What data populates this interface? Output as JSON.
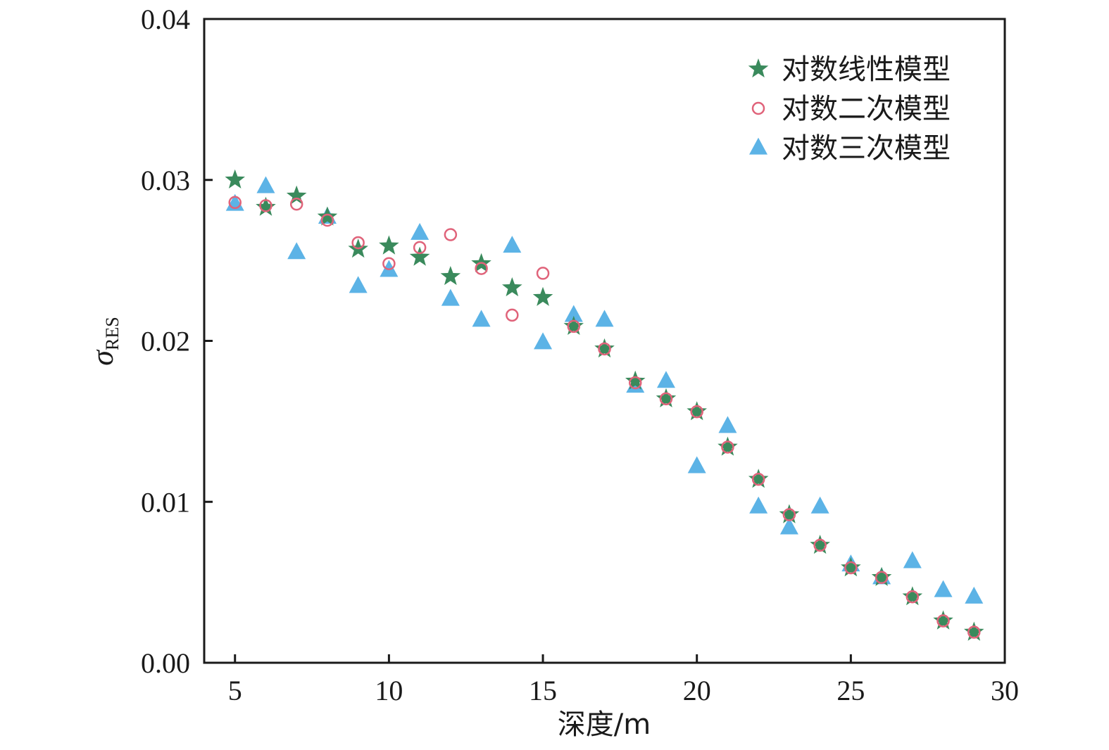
{
  "chart_data": {
    "type": "scatter",
    "xlabel": "深度/m",
    "ylabel": {
      "symbol": "σ",
      "subscript": "RES"
    },
    "xlim": [
      4,
      30
    ],
    "ylim": [
      0,
      0.04
    ],
    "xticks": [
      5,
      10,
      15,
      20,
      25,
      30
    ],
    "xtick_labels": [
      "5",
      "10",
      "15",
      "20",
      "25",
      "30"
    ],
    "yticks": [
      0,
      0.01,
      0.02,
      0.03,
      0.04
    ],
    "ytick_labels": [
      "0.00",
      "0.01",
      "0.02",
      "0.03",
      "0.04"
    ],
    "grid": false,
    "legend_position": "top-right",
    "x": [
      5,
      6,
      7,
      8,
      9,
      10,
      11,
      12,
      13,
      14,
      15,
      16,
      17,
      18,
      19,
      20,
      21,
      22,
      23,
      24,
      25,
      26,
      27,
      28,
      29
    ],
    "series": [
      {
        "name": "对数线性模型",
        "marker": "star",
        "color": "#3a8a5c",
        "values": [
          0.03,
          0.0283,
          0.029,
          0.0277,
          0.0257,
          0.0259,
          0.0252,
          0.024,
          0.0248,
          0.0233,
          0.0227,
          0.0209,
          0.0195,
          0.0175,
          0.0164,
          0.0156,
          0.0134,
          0.0114,
          0.0092,
          0.0073,
          0.0059,
          0.0053,
          0.0041,
          0.0026,
          0.0019
        ]
      },
      {
        "name": "对数二次模型",
        "marker": "open-circle",
        "color": "#e0637a",
        "values": [
          0.0286,
          0.0284,
          0.0285,
          0.0275,
          0.0261,
          0.0248,
          0.0258,
          0.0266,
          0.0245,
          0.0216,
          0.0242,
          0.0209,
          0.0195,
          0.0174,
          0.0164,
          0.0156,
          0.0134,
          0.0114,
          0.0092,
          0.0073,
          0.0059,
          0.0053,
          0.0041,
          0.0026,
          0.0019
        ]
      },
      {
        "name": "对数三次模型",
        "marker": "triangle",
        "color": "#5cb3e6",
        "values": [
          0.0285,
          0.0296,
          0.0255,
          0.0277,
          0.0234,
          0.0244,
          0.0267,
          0.0226,
          0.0213,
          0.0259,
          0.0199,
          0.0216,
          0.0213,
          0.0172,
          0.0175,
          0.0122,
          0.0147,
          0.0097,
          0.0084,
          0.0097,
          0.0061,
          0.0053,
          0.0063,
          0.0045,
          0.0041
        ]
      }
    ]
  }
}
